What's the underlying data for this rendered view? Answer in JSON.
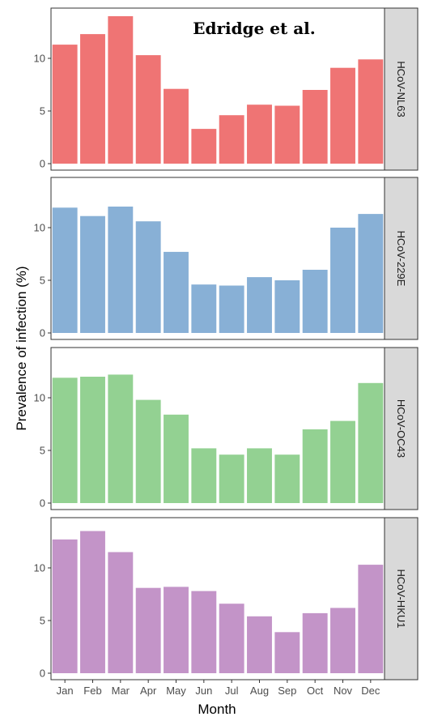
{
  "chart_data": {
    "type": "bar",
    "layout": "faceted-vertical",
    "categories": [
      "Jan",
      "Feb",
      "Mar",
      "Apr",
      "May",
      "Jun",
      "Jul",
      "Aug",
      "Sep",
      "Oct",
      "Nov",
      "Dec"
    ],
    "xlabel": "Month",
    "ylabel": "Prevalence of infection (%)",
    "annotation": "Edridge et al.",
    "y_ticks": [
      0,
      5,
      10
    ],
    "ylim": [
      0,
      14.5
    ],
    "grid": false,
    "panels": [
      {
        "name": "HCoV-NL63",
        "color": "#ef7474",
        "values": [
          11.3,
          12.3,
          14.0,
          10.3,
          7.1,
          3.3,
          4.6,
          5.6,
          5.5,
          7.0,
          9.1,
          9.9
        ]
      },
      {
        "name": "HCoV-229E",
        "color": "#88b0d6",
        "values": [
          11.9,
          11.1,
          12.0,
          10.6,
          7.7,
          4.6,
          4.5,
          5.3,
          5.0,
          6.0,
          10.0,
          11.3
        ]
      },
      {
        "name": "HCoV-OC43",
        "color": "#93d192",
        "values": [
          11.9,
          12.0,
          12.2,
          9.8,
          8.4,
          5.2,
          4.6,
          5.2,
          4.6,
          7.0,
          7.8,
          11.4
        ]
      },
      {
        "name": "HCoV-HKU1",
        "color": "#c394c8",
        "values": [
          12.7,
          13.5,
          11.5,
          8.1,
          8.2,
          7.8,
          6.6,
          5.4,
          3.9,
          5.7,
          6.2,
          10.3
        ]
      }
    ]
  }
}
